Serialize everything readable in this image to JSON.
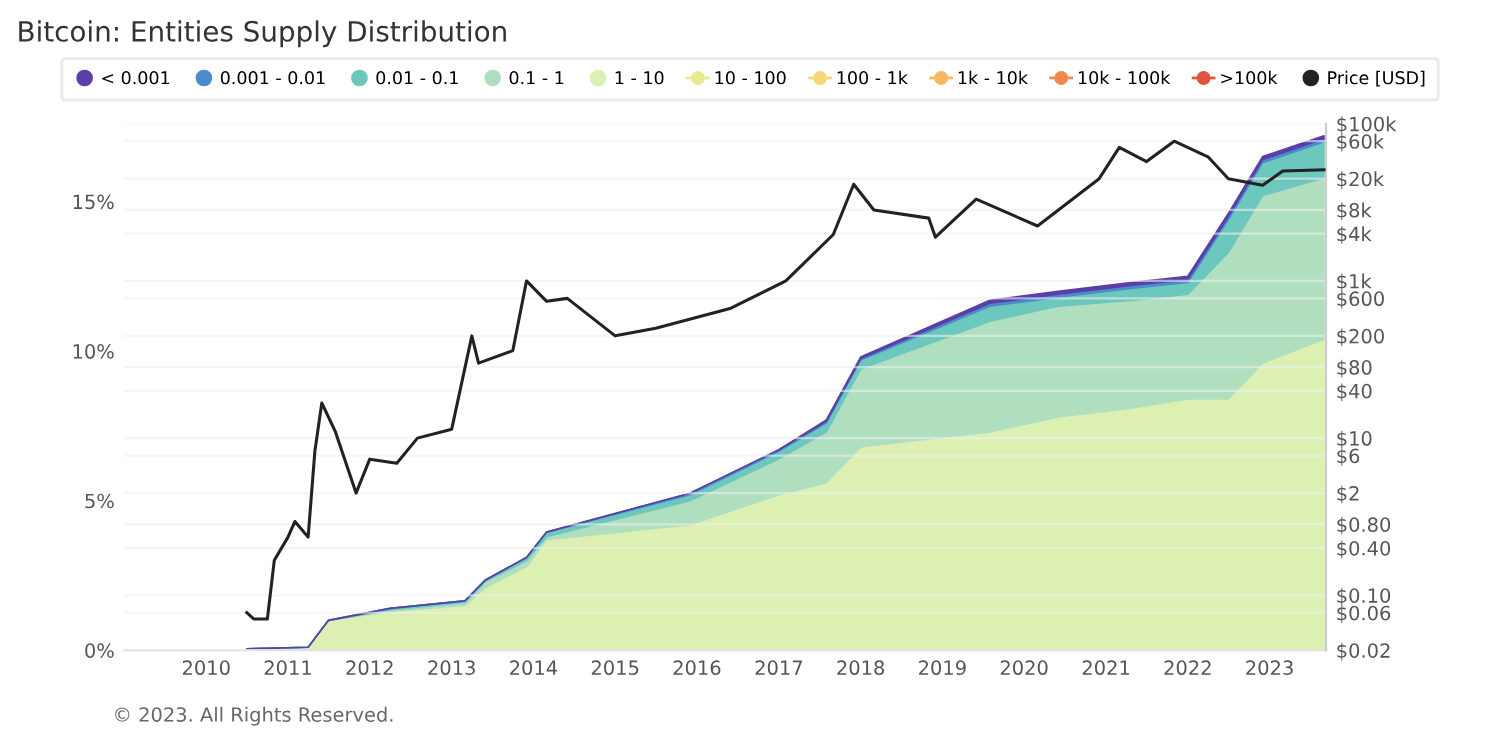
{
  "chart_data": {
    "type": "area",
    "stacked": true,
    "title": "Bitcoin: Entities Supply Distribution",
    "x": [
      "2010-07",
      "2011-04",
      "2011-07",
      "2012-04",
      "2013-03",
      "2013-06",
      "2013-12",
      "2014-03",
      "2015-12",
      "2017-01",
      "2017-08",
      "2018-01",
      "2019-08",
      "2020-06",
      "2021-05",
      "2022-01",
      "2022-07",
      "2022-12",
      "2023-09"
    ],
    "series": [
      {
        "name": ">100k",
        "color": "#e0553e",
        "values": [
          null,
          null,
          null,
          null,
          null,
          null,
          null,
          null,
          null,
          null,
          null,
          null,
          null,
          null,
          null,
          null,
          null,
          null,
          null
        ]
      },
      {
        "name": "10k - 100k",
        "color": "#f0894f",
        "values": [
          null,
          null,
          null,
          null,
          null,
          null,
          null,
          null,
          null,
          null,
          null,
          null,
          null,
          null,
          null,
          null,
          null,
          null,
          null
        ]
      },
      {
        "name": "1k - 10k",
        "color": "#f5b961",
        "values": [
          null,
          null,
          null,
          null,
          null,
          null,
          null,
          null,
          null,
          null,
          null,
          null,
          null,
          null,
          null,
          null,
          null,
          null,
          null
        ]
      },
      {
        "name": "100 - 1k",
        "color": "#f5d77a",
        "values": [
          null,
          null,
          null,
          null,
          null,
          null,
          null,
          null,
          null,
          null,
          null,
          null,
          null,
          null,
          null,
          null,
          null,
          null,
          null
        ]
      },
      {
        "name": "10 - 100",
        "color": "#e8e890",
        "values": [
          null,
          null,
          null,
          null,
          null,
          null,
          null,
          null,
          null,
          null,
          null,
          null,
          null,
          null,
          null,
          null,
          null,
          null,
          null
        ]
      },
      {
        "name": "1 - 10",
        "color": "#dcf0b2",
        "values": [
          0.05,
          0.1,
          1.0,
          1.3,
          1.5,
          2.1,
          2.8,
          3.7,
          4.2,
          5.2,
          5.6,
          6.8,
          7.3,
          7.8,
          8.1,
          8.4,
          8.4,
          9.6,
          10.4
        ]
      },
      {
        "name": "0.1 - 1",
        "color": "#b0dfc0",
        "values": [
          0,
          0,
          0,
          0.05,
          0.1,
          0.2,
          0.2,
          0.1,
          0.8,
          1.2,
          1.7,
          2.6,
          3.7,
          3.7,
          3.6,
          3.5,
          4.9,
          5.6,
          5.4
        ]
      },
      {
        "name": "0.01 - 0.1",
        "color": "#6cc7bd",
        "values": [
          0,
          0,
          0,
          0.05,
          0.05,
          0.05,
          0.1,
          0.15,
          0.2,
          0.25,
          0.3,
          0.3,
          0.5,
          0.3,
          0.4,
          0.4,
          1.1,
          1.1,
          1.2
        ]
      },
      {
        "name": "0.001 - 0.01",
        "color": "#4a8ccc",
        "values": [
          0,
          0,
          0,
          0,
          0,
          0,
          0,
          0,
          0.05,
          0.05,
          0.05,
          0.05,
          0.1,
          0.1,
          0.1,
          0.1,
          0.1,
          0.1,
          0.1
        ]
      },
      {
        "name": "< 0.001",
        "color": "#5b3fa8",
        "values": [
          0,
          0,
          0,
          0,
          0,
          0,
          0,
          0,
          0,
          0,
          0.05,
          0.05,
          0.1,
          0.1,
          0.1,
          0.1,
          0.1,
          0.1,
          0.1
        ]
      },
      {
        "name": "Price [USD]",
        "type": "line",
        "axis": "y2",
        "color": "#222222",
        "x": [
          "2010-07",
          "2010-08",
          "2010-10",
          "2010-11",
          "2011-01",
          "2011-02",
          "2011-04",
          "2011-05",
          "2011-06",
          "2011-08",
          "2011-11",
          "2012-01",
          "2012-05",
          "2012-08",
          "2013-01",
          "2013-04",
          "2013-05",
          "2013-10",
          "2013-12",
          "2014-03",
          "2014-06",
          "2015-01",
          "2015-07",
          "2016-06",
          "2017-02",
          "2017-09",
          "2017-12",
          "2018-03",
          "2018-11",
          "2018-12",
          "2019-06",
          "2020-03",
          "2020-12",
          "2021-03",
          "2021-07",
          "2021-11",
          "2022-04",
          "2022-07",
          "2022-12",
          "2023-03",
          "2023-09"
        ],
        "values": [
          0.06,
          0.05,
          0.05,
          0.28,
          0.55,
          0.87,
          0.55,
          6.8,
          28,
          12,
          2,
          5.4,
          4.8,
          10,
          13,
          200,
          90,
          130,
          1000,
          550,
          600,
          200,
          250,
          450,
          1000,
          3900,
          17000,
          8000,
          6300,
          3600,
          11000,
          5000,
          20000,
          50000,
          33000,
          60000,
          38000,
          20000,
          16500,
          25000,
          26000
        ]
      }
    ],
    "xlim": [
      "2009-01-01",
      "2023-09-10"
    ],
    "xticks": [
      {
        "value": "2010",
        "label": "2010"
      },
      {
        "value": "2011",
        "label": "2011"
      },
      {
        "value": "2012",
        "label": "2012"
      },
      {
        "value": "2013",
        "label": "2013"
      },
      {
        "value": "2014",
        "label": "2014"
      },
      {
        "value": "2015",
        "label": "2015"
      },
      {
        "value": "2016",
        "label": "2016"
      },
      {
        "value": "2017",
        "label": "2017"
      },
      {
        "value": "2018",
        "label": "2018"
      },
      {
        "value": "2019",
        "label": "2019"
      },
      {
        "value": "2020",
        "label": "2020"
      },
      {
        "value": "2021",
        "label": "2021"
      },
      {
        "value": "2022",
        "label": "2022"
      },
      {
        "value": "2023",
        "label": "2023"
      }
    ],
    "ylim": [
      0,
      17.6
    ],
    "yticks": [
      {
        "value": 0,
        "label": "0%"
      },
      {
        "value": 5,
        "label": "5%"
      },
      {
        "value": 10,
        "label": "10%"
      },
      {
        "value": 15,
        "label": "15%"
      }
    ],
    "log": "y2",
    "y2lim": [
      0.02,
      100000
    ],
    "y2ticks": [
      {
        "value": 0.02,
        "label": "$0.02"
      },
      {
        "value": 0.06,
        "label": "$0.06"
      },
      {
        "value": 0.1,
        "label": "$0.10"
      },
      {
        "value": 0.4,
        "label": "$0.40"
      },
      {
        "value": 0.8,
        "label": "$0.80"
      },
      {
        "value": 2,
        "label": "$2"
      },
      {
        "value": 6,
        "label": "$6"
      },
      {
        "value": 10,
        "label": "$10"
      },
      {
        "value": 40,
        "label": "$40"
      },
      {
        "value": 80,
        "label": "$80"
      },
      {
        "value": 200,
        "label": "$200"
      },
      {
        "value": 600,
        "label": "$600"
      },
      {
        "value": 1000,
        "label": "$1k"
      },
      {
        "value": 4000,
        "label": "$4k"
      },
      {
        "value": 8000,
        "label": "$8k"
      },
      {
        "value": 20000,
        "label": "$20k"
      },
      {
        "value": 60000,
        "label": "$60k"
      },
      {
        "value": 100000,
        "label": "$100k"
      }
    ],
    "grid": "y",
    "legend": "top",
    "annotations": [
      "© 2023. All Rights Reserved."
    ]
  }
}
